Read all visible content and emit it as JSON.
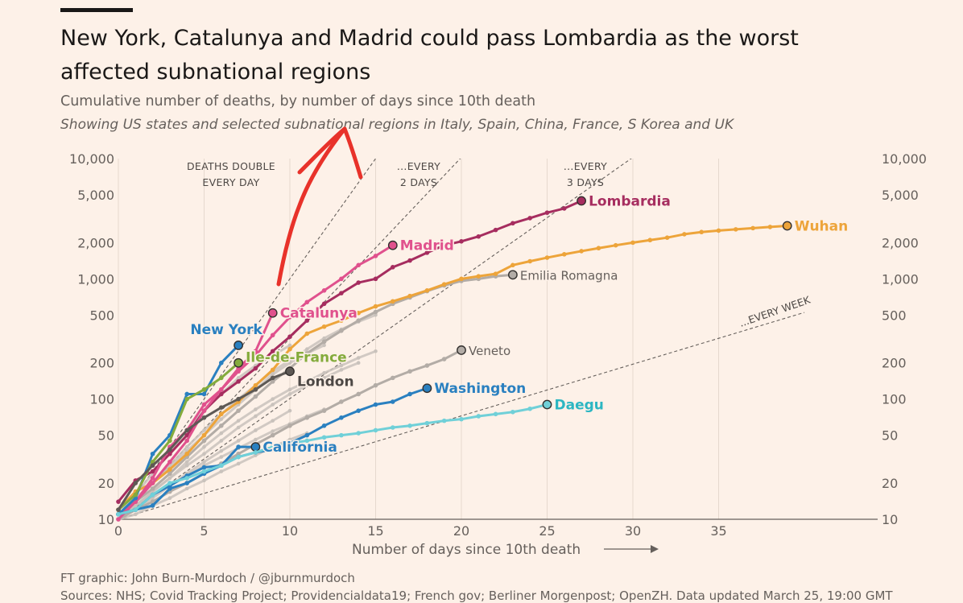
{
  "header": {
    "title": "New York, Catalunya and Madrid could pass Lombardia as the worst affected subnational regions",
    "subtitle": "Cumulative number of deaths, by number of days since 10th death",
    "note": "Showing US states and selected subnational regions in Italy, Spain, China, France, S Korea and UK"
  },
  "footer": {
    "credit": "FT graphic: John Burn-Murdoch / @jburnmurdoch",
    "sources": "Sources: NHS; Covid Tracking Project; Providencialdata19; French gov; Berliner Morgenpost; OpenZH. Data updated March 25, 19:00 GMT"
  },
  "chart_data": {
    "type": "line",
    "y_scale": "log",
    "xlabel": "Number of days since 10th death",
    "ylabel": "",
    "xlim": [
      0,
      40
    ],
    "ylim": [
      10,
      10000
    ],
    "x_ticks": [
      0,
      5,
      10,
      15,
      20,
      25,
      30,
      35
    ],
    "y_ticks": [
      10,
      20,
      50,
      100,
      200,
      500,
      1000,
      2000,
      5000,
      10000
    ],
    "y_tick_labels": [
      "10",
      "20",
      "50",
      "100",
      "200",
      "500",
      "1,000",
      "2,000",
      "5,000",
      "10,000"
    ],
    "grid": "vertical",
    "reference_lines": [
      {
        "label_lines": [
          "DEATHS DOUBLE",
          "EVERY DAY"
        ],
        "doubling_days": 1
      },
      {
        "label_lines": [
          "...EVERY",
          "2 DAYS"
        ],
        "doubling_days": 2
      },
      {
        "label_lines": [
          "...EVERY",
          "3 DAYS"
        ],
        "doubling_days": 3
      },
      {
        "label_lines": [
          "...EVERY WEEK"
        ],
        "doubling_days": 7
      }
    ],
    "series": [
      {
        "name": "Lombardia",
        "color": "#a62d5f",
        "highlight": true,
        "y": [
          14,
          21,
          25,
          35,
          50,
          80,
          110,
          140,
          180,
          250,
          330,
          450,
          620,
          760,
          930,
          1000,
          1250,
          1420,
          1650,
          1900,
          2050,
          2250,
          2550,
          2900,
          3200,
          3550,
          3850,
          4450
        ]
      },
      {
        "name": "Wuhan",
        "color": "#eda43a",
        "highlight": true,
        "y": [
          12,
          17,
          20,
          26,
          35,
          50,
          75,
          95,
          130,
          175,
          260,
          350,
          400,
          450,
          520,
          590,
          650,
          720,
          800,
          900,
          1000,
          1050,
          1100,
          1300,
          1400,
          1500,
          1600,
          1700,
          1800,
          1900,
          2000,
          2100,
          2200,
          2350,
          2450,
          2520,
          2580,
          2640,
          2700,
          2760
        ]
      },
      {
        "name": "Madrid",
        "color": "#e0518d",
        "highlight": true,
        "y": [
          10,
          14,
          22,
          40,
          55,
          90,
          120,
          170,
          230,
          340,
          480,
          640,
          800,
          1000,
          1300,
          1550,
          1900
        ]
      },
      {
        "name": "Catalunya",
        "color": "#e0518d",
        "highlight": true,
        "y": [
          11,
          14,
          20,
          30,
          45,
          80,
          120,
          180,
          250,
          520
        ]
      },
      {
        "name": "New York",
        "color": "#2a80c0",
        "highlight": true,
        "y": [
          11,
          15,
          35,
          50,
          110,
          110,
          200,
          280
        ]
      },
      {
        "name": "Ile-de-France",
        "color": "#84ab3c",
        "highlight": true,
        "y": [
          12,
          16,
          30,
          45,
          100,
          120,
          150,
          200
        ]
      },
      {
        "name": "London",
        "color": "#5e5955",
        "highlight": true,
        "y": [
          12,
          20,
          28,
          38,
          55,
          70,
          85,
          100,
          120,
          150,
          170
        ]
      },
      {
        "name": "Washington",
        "color": "#2a80c0",
        "highlight": true,
        "y": [
          11,
          12,
          13,
          18,
          20,
          24,
          28,
          33,
          36,
          38,
          43,
          50,
          60,
          70,
          80,
          90,
          95,
          110,
          123
        ]
      },
      {
        "name": "California",
        "color": "#2a80c0",
        "highlight": true,
        "y": [
          11,
          12,
          16,
          19,
          23,
          27,
          28,
          40,
          40
        ]
      },
      {
        "name": "Daegu",
        "color": "#70d0d8",
        "highlight": true,
        "y": [
          11,
          12,
          16,
          20,
          22,
          25,
          28,
          33,
          36,
          40,
          43,
          45,
          48,
          50,
          52,
          55,
          58,
          60,
          63,
          66,
          68,
          72,
          75,
          78,
          83,
          90
        ]
      },
      {
        "name": "Emilia Romagna",
        "color": "#b3aca6",
        "highlight": false,
        "y": [
          11,
          14,
          18,
          24,
          33,
          45,
          60,
          80,
          105,
          140,
          180,
          240,
          300,
          370,
          450,
          530,
          620,
          700,
          790,
          880,
          960,
          1000,
          1050,
          1080
        ]
      },
      {
        "name": "Veneto",
        "color": "#b3aca6",
        "highlight": false,
        "y": [
          10,
          12,
          14,
          17,
          20,
          24,
          29,
          35,
          42,
          50,
          60,
          70,
          80,
          95,
          110,
          130,
          150,
          170,
          190,
          215,
          255
        ]
      }
    ],
    "unlabeled_grey_series": [
      {
        "y": [
          12,
          16,
          24,
          36,
          55,
          80,
          110,
          150,
          190,
          230,
          280
        ]
      },
      {
        "y": [
          11,
          14,
          20,
          28,
          40,
          55,
          75,
          100,
          130,
          170,
          210,
          260,
          320,
          380,
          440,
          500
        ]
      },
      {
        "y": [
          11,
          13,
          17,
          22,
          30,
          40,
          52,
          66,
          82,
          100,
          120,
          140,
          165,
          190,
          220,
          250
        ]
      },
      {
        "y": [
          10,
          13,
          17,
          22,
          28,
          35,
          45,
          58,
          72,
          90,
          110,
          130,
          150,
          175,
          200
        ]
      },
      {
        "y": [
          10,
          12,
          15,
          19,
          24,
          30,
          37,
          45,
          55,
          66,
          80
        ]
      },
      {
        "y": [
          11,
          13,
          16,
          19,
          23,
          28,
          33,
          39,
          46,
          54,
          62,
          72,
          82
        ]
      },
      {
        "y": [
          10,
          11,
          13,
          15,
          18,
          21,
          25,
          29,
          34,
          40,
          46,
          52
        ]
      },
      {
        "y": [
          12,
          15,
          20,
          27,
          37,
          50,
          68,
          90,
          120,
          160,
          200,
          240,
          280
        ]
      }
    ]
  }
}
